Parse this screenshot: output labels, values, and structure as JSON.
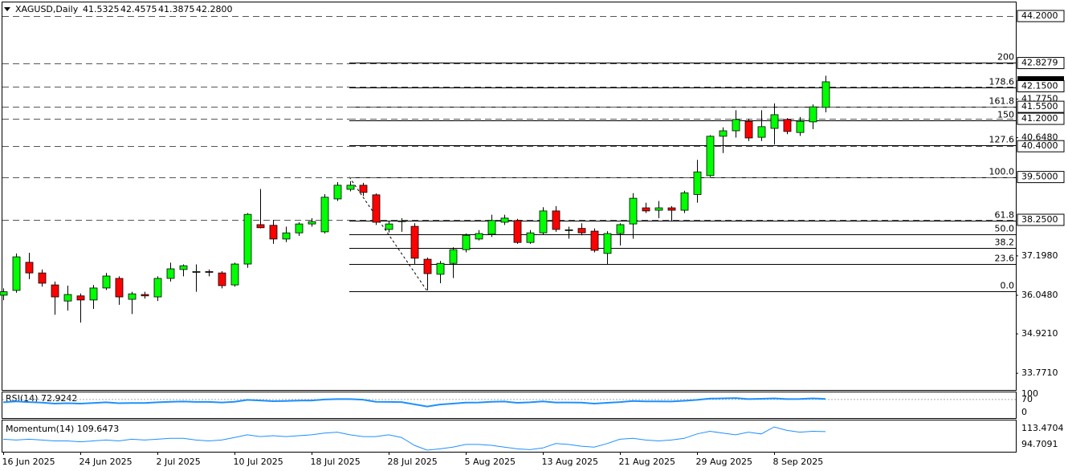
{
  "chart_data": {
    "type": "candlestick",
    "symbol": "XAGUSD,Daily",
    "header_values": [
      "41.5325",
      "42.4575",
      "41.3875",
      "42.2800"
    ],
    "up_color": "#00ff00",
    "down_color": "#ff0000",
    "categories": [
      "16 Jun 2025",
      null,
      null,
      null,
      null,
      null,
      "24 Jun 2025",
      null,
      null,
      null,
      null,
      null,
      "2 Jul 2025",
      null,
      null,
      null,
      null,
      null,
      "10 Jul 2025",
      null,
      null,
      null,
      null,
      null,
      "18 Jul 2025",
      null,
      null,
      null,
      null,
      null,
      "28 Jul 2025",
      null,
      null,
      null,
      null,
      null,
      "5 Aug 2025",
      null,
      null,
      null,
      null,
      null,
      "13 Aug 2025",
      null,
      null,
      null,
      null,
      null,
      "21 Aug 2025",
      null,
      null,
      null,
      null,
      null,
      "29 Aug 2025",
      null,
      null,
      null,
      null,
      null,
      "8 Sep 2025",
      null,
      null,
      null,
      null
    ],
    "open": [
      36.05,
      36.19,
      37.01,
      36.7,
      36.35,
      35.88,
      36.03,
      35.91,
      36.26,
      36.54,
      35.93,
      36.07,
      36.0,
      36.54,
      36.8,
      36.73,
      36.74,
      36.7,
      36.35,
      36.96,
      38.11,
      38.09,
      37.69,
      37.87,
      38.13,
      37.9,
      38.86,
      39.14,
      39.26,
      38.98,
      37.97,
      38.2,
      38.06,
      37.1,
      36.66,
      36.98,
      37.38,
      37.69,
      37.83,
      38.18,
      38.23,
      37.59,
      37.87,
      38.51,
      37.95,
      38.0,
      37.92,
      37.27,
      37.85,
      38.13,
      38.6,
      38.53,
      38.6,
      38.53,
      38.99,
      39.54,
      40.69,
      40.85,
      41.13,
      40.66,
      40.92,
      41.18,
      40.8,
      41.11,
      41.5325
    ],
    "high": [
      36.25,
      37.27,
      37.29,
      36.8,
      36.45,
      36.33,
      36.1,
      36.35,
      36.7,
      36.6,
      36.15,
      36.15,
      36.6,
      37.0,
      36.95,
      36.95,
      36.8,
      36.75,
      37.0,
      38.45,
      39.15,
      38.25,
      38.05,
      38.18,
      38.3,
      39.0,
      39.35,
      39.38,
      39.33,
      39.02,
      38.2,
      38.3,
      38.15,
      37.15,
      37.05,
      37.45,
      37.85,
      37.95,
      38.4,
      38.4,
      38.28,
      37.95,
      38.62,
      38.65,
      38.05,
      38.15,
      38.0,
      37.92,
      38.15,
      39.03,
      38.75,
      38.8,
      38.65,
      39.1,
      40.0,
      40.72,
      40.95,
      41.45,
      41.2,
      41.45,
      41.65,
      41.22,
      41.25,
      41.62,
      42.4575
    ],
    "low": [
      35.9,
      36.12,
      36.52,
      36.3,
      35.48,
      35.6,
      35.25,
      35.65,
      36.2,
      35.77,
      35.5,
      35.95,
      35.88,
      36.45,
      36.6,
      36.15,
      36.6,
      36.25,
      36.3,
      36.85,
      38.0,
      37.55,
      37.6,
      37.78,
      38.05,
      37.85,
      38.8,
      39.08,
      38.95,
      38.1,
      37.88,
      37.9,
      36.95,
      36.19,
      36.4,
      36.55,
      37.3,
      37.65,
      37.75,
      38.1,
      37.55,
      37.55,
      37.82,
      37.9,
      37.7,
      37.8,
      37.3,
      36.95,
      37.5,
      37.7,
      38.45,
      38.3,
      38.2,
      38.45,
      38.75,
      39.5,
      40.2,
      40.65,
      40.55,
      40.55,
      40.45,
      40.75,
      40.7,
      40.9,
      41.3875
    ],
    "close": [
      36.15,
      37.17,
      36.7,
      36.4,
      36.0,
      36.07,
      35.91,
      36.26,
      36.61,
      36.0,
      36.09,
      36.03,
      36.54,
      36.82,
      36.91,
      36.74,
      36.73,
      36.33,
      36.96,
      38.41,
      38.02,
      37.69,
      37.87,
      38.13,
      38.2,
      38.91,
      39.26,
      39.26,
      39.05,
      38.18,
      38.13,
      38.22,
      37.13,
      36.68,
      36.98,
      37.38,
      37.8,
      37.85,
      38.23,
      38.3,
      37.59,
      37.87,
      38.51,
      37.97,
      37.96,
      37.87,
      37.36,
      37.85,
      38.11,
      38.88,
      38.51,
      38.6,
      38.53,
      39.04,
      39.65,
      40.69,
      40.85,
      41.18,
      40.64,
      40.97,
      41.32,
      40.83,
      41.13,
      41.55,
      42.28
    ],
    "ylim": [
      33.26,
      44.598
    ],
    "yticks": [
      {
        "value": 33.771,
        "label": "33.7710"
      },
      {
        "value": 34.921,
        "label": "34.9210"
      },
      {
        "value": 36.048,
        "label": "36.0480"
      },
      {
        "value": 37.198,
        "label": "37.1980"
      },
      {
        "value": 40.648,
        "label": "40.6480"
      },
      {
        "value": 41.775,
        "label": "41.7750"
      }
    ],
    "current_price": 42.28,
    "levels": [
      {
        "value": 44.2,
        "label": "44.2000"
      },
      {
        "value": 42.8279,
        "label": "42.8279"
      },
      {
        "value": 42.15,
        "label": "42.1500"
      },
      {
        "value": 41.55,
        "label": "41.5500"
      },
      {
        "value": 41.2,
        "label": "41.2000"
      },
      {
        "value": 40.4,
        "label": "40.4000"
      },
      {
        "value": 39.5,
        "label": "39.5000"
      },
      {
        "value": 38.25,
        "label": "38.2500"
      }
    ],
    "fibonacci": [
      {
        "value": 36.17,
        "label": "0.0"
      },
      {
        "value": 36.96,
        "label": "23.6"
      },
      {
        "value": 37.44,
        "label": "38.2"
      },
      {
        "value": 37.835,
        "label": "50.0"
      },
      {
        "value": 38.23,
        "label": "61.8"
      },
      {
        "value": 39.5,
        "label": "100.0"
      },
      {
        "value": 40.42,
        "label": "127.6"
      },
      {
        "value": 41.165,
        "label": "150"
      },
      {
        "value": 41.56,
        "label": "161.8"
      },
      {
        "value": 42.12,
        "label": "178.6"
      },
      {
        "value": 42.83,
        "label": "200"
      }
    ],
    "rsi": {
      "title": "RSI(14) 72.9242",
      "color": "#1e90ff",
      "ylim": [
        -30.4,
        108.7
      ],
      "yticks": [
        100,
        70,
        0
      ],
      "level": 70,
      "values": [
        55,
        60,
        56,
        53,
        48,
        50,
        48,
        51,
        55,
        50,
        51,
        51,
        55,
        58,
        59,
        57,
        57,
        54,
        58,
        68,
        65,
        61,
        62,
        64,
        65,
        70,
        72,
        72,
        69,
        58,
        57,
        56,
        44,
        32,
        43,
        48,
        53,
        54,
        58,
        59,
        52,
        55,
        60,
        54,
        54,
        53,
        48,
        52,
        56,
        62,
        60,
        60,
        59,
        63,
        68,
        75,
        76,
        78,
        72,
        74,
        76,
        72,
        73,
        76,
        72.9242
      ]
    },
    "momentum": {
      "title": "Momentum(14) 109.6473",
      "color": "#1e90ff",
      "ylim": [
        86.66,
        122.41
      ],
      "yticks": [
        {
          "value": 113.4704,
          "label": "113.4704"
        },
        {
          "value": 94.7091,
          "label": "94.7091"
        }
      ],
      "values": [
        101,
        100,
        101,
        100,
        99,
        99,
        98,
        99,
        100,
        99,
        101,
        100,
        101,
        102,
        102,
        100,
        99,
        100,
        103,
        106,
        104,
        105,
        104,
        105,
        106,
        108,
        109,
        106,
        104,
        104,
        106,
        103,
        94,
        88.5,
        90,
        92,
        95,
        95,
        94,
        92,
        90,
        89,
        91,
        96,
        95,
        93,
        92,
        96,
        101,
        102,
        100,
        99,
        100,
        102,
        107,
        110,
        108,
        106,
        109,
        107,
        115,
        111,
        109,
        110,
        109.6473
      ]
    }
  }
}
